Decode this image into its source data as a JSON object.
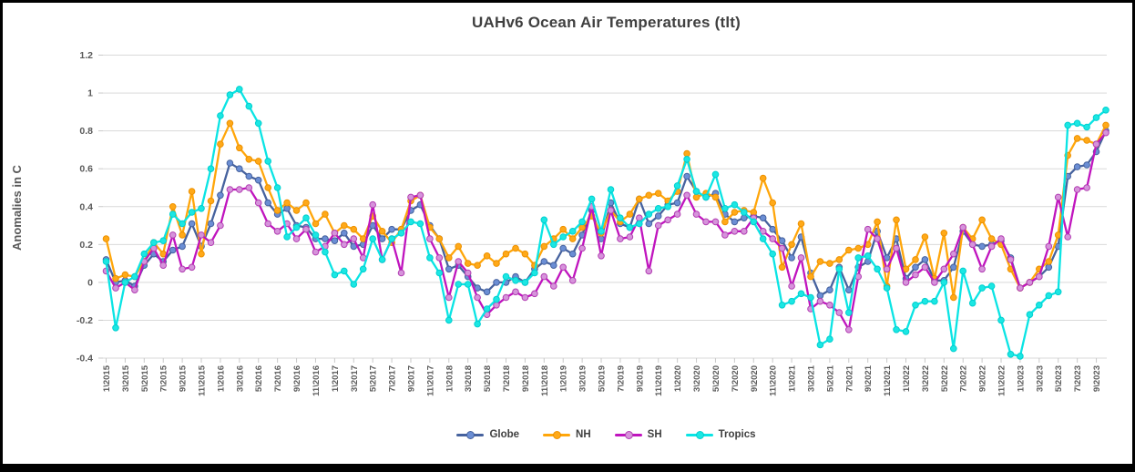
{
  "title": "UAHv6 Ocean Air Temperatures (tlt)",
  "y_axis_title": "Anomalies in C",
  "chart_data": {
    "type": "line",
    "title": "UAHv6 Ocean Air Temperatures (tlt)",
    "xlabel": "",
    "ylabel": "Anomalies in C",
    "ylim": [
      -0.4,
      1.2
    ],
    "y_tick_step": 0.2,
    "y_tick_labels": [
      "1.2",
      "1",
      "0.8",
      "0.6",
      "0.4",
      "0.2",
      "0",
      "-0.2",
      "-0.4"
    ],
    "grid": true,
    "legend_position": "bottom",
    "x_label_every": 2,
    "x": [
      "1\\2015",
      "2\\2015",
      "3\\2015",
      "4\\2015",
      "5\\2015",
      "6\\2015",
      "7\\2015",
      "8\\2015",
      "9\\2015",
      "10\\2015",
      "11\\2015",
      "12\\2015",
      "1\\2016",
      "2\\2016",
      "3\\2016",
      "4\\2016",
      "5\\2016",
      "6\\2016",
      "7\\2016",
      "8\\2016",
      "9\\2016",
      "10\\2016",
      "11\\2016",
      "12\\2016",
      "1\\2017",
      "2\\2017",
      "3\\2017",
      "4\\2017",
      "5\\2017",
      "6\\2017",
      "7\\2017",
      "8\\2017",
      "9\\2017",
      "10\\2017",
      "11\\2017",
      "12\\2017",
      "1\\2018",
      "2\\2018",
      "3\\2018",
      "4\\2018",
      "5\\2018",
      "6\\2018",
      "7\\2018",
      "8\\2018",
      "9\\2018",
      "10\\2018",
      "11\\2018",
      "12\\2018",
      "1\\2019",
      "2\\2019",
      "3\\2019",
      "4\\2019",
      "5\\2019",
      "6\\2019",
      "7\\2019",
      "8\\2019",
      "9\\2019",
      "10\\2019",
      "11\\2019",
      "12\\2019",
      "1\\2020",
      "2\\2020",
      "3\\2020",
      "4\\2020",
      "5\\2020",
      "6\\2020",
      "7\\2020",
      "8\\2020",
      "9\\2020",
      "10\\2020",
      "11\\2020",
      "12\\2020",
      "1\\2021",
      "2\\2021",
      "3\\2021",
      "4\\2021",
      "5\\2021",
      "6\\2021",
      "7\\2021",
      "8\\2021",
      "9\\2021",
      "10\\2021",
      "11\\2021",
      "12\\2021",
      "1\\2022",
      "2\\2022",
      "3\\2022",
      "4\\2022",
      "5\\2022",
      "6\\2022",
      "7\\2022",
      "8\\2022",
      "9\\2022",
      "10\\2022",
      "11\\2022",
      "12\\2022",
      "1\\2023",
      "2\\2023",
      "3\\2023",
      "4\\2023",
      "5\\2023",
      "6\\2023",
      "7\\2023",
      "8\\2023",
      "9\\2023",
      "10\\2023"
    ],
    "series": [
      {
        "name": "Globe",
        "line_color": "#46629E",
        "marker_fill": "#6B8ED4",
        "marker_stroke": "#46629E",
        "values": [
          0.12,
          0.0,
          0.01,
          -0.02,
          0.09,
          0.15,
          0.11,
          0.17,
          0.19,
          0.31,
          0.19,
          0.31,
          0.46,
          0.63,
          0.6,
          0.56,
          0.54,
          0.42,
          0.36,
          0.39,
          0.3,
          0.29,
          0.23,
          0.23,
          0.22,
          0.26,
          0.19,
          0.2,
          0.3,
          0.23,
          0.28,
          0.28,
          0.38,
          0.41,
          0.3,
          0.23,
          0.07,
          0.09,
          0.03,
          -0.03,
          -0.05,
          0.0,
          0.0,
          0.03,
          0.0,
          0.07,
          0.11,
          0.09,
          0.18,
          0.15,
          0.25,
          0.38,
          0.23,
          0.42,
          0.31,
          0.29,
          0.44,
          0.31,
          0.35,
          0.41,
          0.42,
          0.56,
          0.48,
          0.45,
          0.47,
          0.36,
          0.32,
          0.34,
          0.35,
          0.34,
          0.28,
          0.22,
          0.13,
          0.24,
          0.05,
          -0.07,
          -0.04,
          0.08,
          -0.04,
          0.08,
          0.11,
          0.27,
          0.13,
          0.23,
          0.02,
          0.08,
          0.12,
          0.01,
          0.01,
          0.08,
          0.27,
          0.2,
          0.19,
          0.2,
          0.22,
          0.13,
          -0.03,
          0.0,
          0.03,
          0.08,
          0.19,
          0.56,
          0.61,
          0.62,
          0.69,
          0.8
        ]
      },
      {
        "name": "NH",
        "line_color": "#FFA60A",
        "marker_fill": "#FFA918",
        "marker_stroke": "#ED9100",
        "values": [
          0.23,
          0.02,
          0.04,
          0.03,
          0.11,
          0.21,
          0.15,
          0.4,
          0.25,
          0.48,
          0.15,
          0.43,
          0.73,
          0.84,
          0.71,
          0.65,
          0.64,
          0.5,
          0.38,
          0.42,
          0.38,
          0.42,
          0.31,
          0.36,
          0.26,
          0.3,
          0.28,
          0.23,
          0.35,
          0.27,
          0.21,
          0.28,
          0.43,
          0.46,
          0.29,
          0.23,
          0.13,
          0.19,
          0.1,
          0.09,
          0.14,
          0.1,
          0.15,
          0.18,
          0.15,
          0.09,
          0.19,
          0.23,
          0.28,
          0.23,
          0.29,
          0.35,
          0.26,
          0.38,
          0.32,
          0.36,
          0.44,
          0.46,
          0.47,
          0.43,
          0.48,
          0.68,
          0.45,
          0.47,
          0.45,
          0.32,
          0.37,
          0.38,
          0.37,
          0.55,
          0.42,
          0.08,
          0.2,
          0.31,
          0.03,
          0.11,
          0.1,
          0.12,
          0.17,
          0.18,
          0.2,
          0.32,
          -0.02,
          0.33,
          0.07,
          0.12,
          0.24,
          0.02,
          0.26,
          -0.08,
          0.29,
          0.23,
          0.33,
          0.23,
          0.2,
          0.07,
          -0.03,
          0.0,
          0.07,
          0.11,
          0.25,
          0.67,
          0.76,
          0.75,
          0.73,
          0.83
        ]
      },
      {
        "name": "SH",
        "line_color": "#C014BE",
        "marker_fill": "#D693DB",
        "marker_stroke": "#B23EB2",
        "values": [
          0.06,
          -0.03,
          0.0,
          -0.04,
          0.11,
          0.18,
          0.09,
          0.25,
          0.07,
          0.08,
          0.25,
          0.21,
          0.3,
          0.49,
          0.49,
          0.5,
          0.42,
          0.31,
          0.27,
          0.31,
          0.23,
          0.28,
          0.16,
          0.19,
          0.26,
          0.2,
          0.23,
          0.13,
          0.41,
          0.12,
          0.23,
          0.05,
          0.45,
          0.46,
          0.23,
          0.13,
          -0.08,
          0.11,
          0.05,
          -0.08,
          -0.17,
          -0.12,
          -0.08,
          -0.05,
          -0.08,
          -0.06,
          0.03,
          -0.02,
          0.08,
          0.01,
          0.18,
          0.4,
          0.14,
          0.38,
          0.23,
          0.24,
          0.34,
          0.06,
          0.3,
          0.33,
          0.36,
          0.46,
          0.36,
          0.32,
          0.32,
          0.25,
          0.27,
          0.27,
          0.34,
          0.27,
          0.23,
          0.18,
          -0.02,
          0.13,
          -0.14,
          -0.1,
          -0.12,
          -0.16,
          -0.25,
          0.03,
          0.28,
          0.23,
          0.07,
          0.18,
          0.0,
          0.04,
          0.08,
          0.0,
          0.07,
          0.15,
          0.29,
          0.2,
          0.07,
          0.19,
          0.23,
          0.12,
          -0.03,
          0.0,
          0.03,
          0.19,
          0.45,
          0.24,
          0.49,
          0.5,
          0.73,
          0.79
        ]
      },
      {
        "name": "Tropics",
        "line_color": "#0AE4E4",
        "marker_fill": "#1BE7E3",
        "marker_stroke": "#00CFCF",
        "values": [
          0.11,
          -0.24,
          0.0,
          0.03,
          0.15,
          0.21,
          0.22,
          0.36,
          0.31,
          0.37,
          0.39,
          0.6,
          0.88,
          0.99,
          1.02,
          0.93,
          0.84,
          0.64,
          0.5,
          0.24,
          0.29,
          0.34,
          0.25,
          0.16,
          0.04,
          0.06,
          -0.01,
          0.07,
          0.23,
          0.12,
          0.23,
          0.26,
          0.32,
          0.31,
          0.13,
          0.05,
          -0.2,
          -0.01,
          -0.01,
          -0.22,
          -0.14,
          -0.09,
          0.03,
          0.01,
          0.0,
          0.05,
          0.33,
          0.2,
          0.24,
          0.27,
          0.32,
          0.44,
          0.27,
          0.49,
          0.34,
          0.29,
          0.31,
          0.36,
          0.39,
          0.4,
          0.51,
          0.65,
          0.48,
          0.45,
          0.57,
          0.39,
          0.41,
          0.37,
          0.32,
          0.23,
          0.15,
          -0.12,
          -0.1,
          -0.06,
          -0.08,
          -0.33,
          -0.3,
          0.07,
          -0.16,
          0.13,
          0.14,
          0.07,
          -0.03,
          -0.25,
          -0.26,
          -0.12,
          -0.1,
          -0.1,
          0.0,
          -0.35,
          0.06,
          -0.11,
          -0.03,
          -0.02,
          -0.2,
          -0.38,
          -0.39,
          -0.17,
          -0.12,
          -0.07,
          -0.05,
          0.83,
          0.84,
          0.82,
          0.87,
          0.91
        ]
      }
    ]
  },
  "style": {
    "gridline_color": "#d9d9d9",
    "tick_color": "#c9c9c9",
    "axis_text_color": "#595959",
    "title_color": "#404040",
    "background": "#ffffff",
    "border_color": "#000000"
  }
}
